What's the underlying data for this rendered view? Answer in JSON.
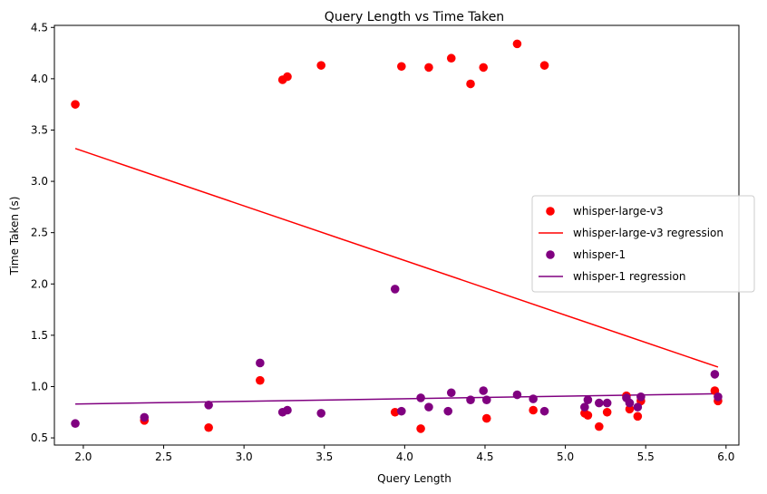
{
  "chart_data": {
    "type": "scatter",
    "title": "Query Length vs Time Taken",
    "xlabel": "Query Length",
    "ylabel": "Time Taken (s)",
    "xlim": [
      1.82,
      6.08
    ],
    "ylim": [
      0.43,
      4.52
    ],
    "xticks": [
      "2.0",
      "2.5",
      "3.0",
      "3.5",
      "4.0",
      "4.5",
      "5.0",
      "5.5",
      "6.0"
    ],
    "yticks": [
      "0.5",
      "1.0",
      "1.5",
      "2.0",
      "2.5",
      "3.0",
      "3.5",
      "4.0",
      "4.5"
    ],
    "grid": false,
    "legend_position": "center-right",
    "series": [
      {
        "name": "whisper-large-v3",
        "kind": "scatter",
        "color": "#ff0000",
        "points": [
          [
            1.95,
            3.75
          ],
          [
            2.38,
            0.67
          ],
          [
            2.78,
            0.6
          ],
          [
            3.1,
            1.06
          ],
          [
            3.24,
            3.99
          ],
          [
            3.27,
            4.02
          ],
          [
            3.48,
            4.13
          ],
          [
            3.94,
            0.75
          ],
          [
            3.98,
            4.12
          ],
          [
            4.1,
            0.59
          ],
          [
            4.15,
            4.11
          ],
          [
            4.29,
            4.2
          ],
          [
            4.41,
            3.95
          ],
          [
            4.49,
            4.11
          ],
          [
            4.51,
            0.69
          ],
          [
            4.7,
            4.34
          ],
          [
            4.8,
            0.77
          ],
          [
            4.87,
            4.13
          ],
          [
            5.12,
            0.74
          ],
          [
            5.14,
            0.72
          ],
          [
            5.21,
            0.61
          ],
          [
            5.26,
            0.75
          ],
          [
            5.38,
            0.91
          ],
          [
            5.4,
            0.78
          ],
          [
            5.45,
            0.71
          ],
          [
            5.47,
            0.86
          ],
          [
            5.93,
            0.96
          ],
          [
            5.95,
            0.86
          ]
        ]
      },
      {
        "name": "whisper-large-v3 regression",
        "kind": "line",
        "color": "#ff0000",
        "points": [
          [
            1.95,
            3.32
          ],
          [
            5.95,
            1.19
          ]
        ]
      },
      {
        "name": "whisper-1",
        "kind": "scatter",
        "color": "#800080",
        "points": [
          [
            1.95,
            0.64
          ],
          [
            2.38,
            0.7
          ],
          [
            2.78,
            0.82
          ],
          [
            3.1,
            1.23
          ],
          [
            3.24,
            0.75
          ],
          [
            3.27,
            0.77
          ],
          [
            3.48,
            0.74
          ],
          [
            3.94,
            1.95
          ],
          [
            3.98,
            0.76
          ],
          [
            4.1,
            0.89
          ],
          [
            4.15,
            0.8
          ],
          [
            4.29,
            0.94
          ],
          [
            4.27,
            0.76
          ],
          [
            4.41,
            0.87
          ],
          [
            4.49,
            0.96
          ],
          [
            4.51,
            0.87
          ],
          [
            4.7,
            0.92
          ],
          [
            4.8,
            0.88
          ],
          [
            4.87,
            0.76
          ],
          [
            5.12,
            0.8
          ],
          [
            5.14,
            0.87
          ],
          [
            5.21,
            0.84
          ],
          [
            5.26,
            0.84
          ],
          [
            5.38,
            0.89
          ],
          [
            5.4,
            0.84
          ],
          [
            5.45,
            0.8
          ],
          [
            5.47,
            0.9
          ],
          [
            5.93,
            1.12
          ],
          [
            5.95,
            0.9
          ]
        ]
      },
      {
        "name": "whisper-1 regression",
        "kind": "line",
        "color": "#800080",
        "points": [
          [
            1.95,
            0.83
          ],
          [
            5.95,
            0.93
          ]
        ]
      }
    ]
  }
}
